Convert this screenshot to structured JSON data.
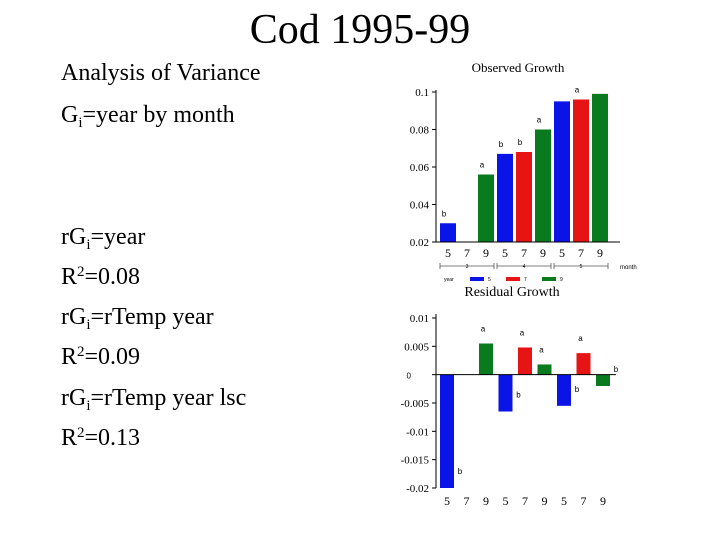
{
  "slide": {
    "title": "Cod 1995-99",
    "lines": {
      "anova": "Analysis of Variance",
      "g_pre": "G",
      "g_sub": "i",
      "g_post": "=year by month",
      "r1_pre": "rG",
      "r1_sub": "i",
      "r1_post": "=year",
      "r2_a": "R",
      "r2_sup": "2",
      "r2_b": "=0.08",
      "r3_pre": "rG",
      "r3_sub": "i",
      "r3_post": "=rTemp year",
      "r4_a": "R",
      "r4_sup": "2",
      "r4_b": "=0.09",
      "r5_pre": "rG",
      "r5_sub": "i",
      "r5_post": "=rTemp year lsc",
      "r6_a": "R",
      "r6_sup": "2",
      "r6_b": "=0.13"
    }
  },
  "chart_data": [
    {
      "type": "bar",
      "title": "Observed Growth",
      "categories": [
        "5",
        "7",
        "9",
        "5",
        "7",
        "9",
        "5",
        "7",
        "9"
      ],
      "values": [
        0.03,
        null,
        0.056,
        0.067,
        0.068,
        0.08,
        0.095,
        0.096,
        0.099
      ],
      "bar_colors": [
        "#0a14e6",
        "#e61414",
        "#0a7a1e",
        "#0a14e6",
        "#e61414",
        "#0a7a1e",
        "#0a14e6",
        "#e61414",
        "#0a7a1e"
      ],
      "bar_labels": [
        "b",
        "",
        "a",
        "b",
        "b",
        "a",
        "",
        "a",
        ""
      ],
      "ylim": [
        0.02,
        0.1
      ],
      "yticks": [
        "0.02",
        "0.04",
        "0.06",
        "0.08",
        "0.1"
      ],
      "group_labels": [
        "3",
        "4",
        "5"
      ],
      "xlabel": "month",
      "legend_title": "year",
      "legend": [
        {
          "name": "5",
          "color": "#0a14e6"
        },
        {
          "name": "7",
          "color": "#e61414"
        },
        {
          "name": "9",
          "color": "#0a7a1e"
        }
      ]
    },
    {
      "type": "bar",
      "title": "Residual Growth",
      "categories": [
        "5",
        "7",
        "9",
        "5",
        "7",
        "9",
        "5",
        "7",
        "9"
      ],
      "values": [
        -0.02,
        null,
        0.0055,
        -0.0065,
        0.0048,
        0.0018,
        -0.0055,
        0.0038,
        -0.002
      ],
      "bar_colors": [
        "#0a14e6",
        "#e61414",
        "#0a7a1e",
        "#0a14e6",
        "#e61414",
        "#0a7a1e",
        "#0a14e6",
        "#e61414",
        "#0a7a1e"
      ],
      "bar_labels": [
        "b",
        "",
        "a",
        "b",
        "a",
        "a",
        "b",
        "a",
        "b"
      ],
      "ylim": [
        -0.02,
        0.01
      ],
      "yticks": [
        "0.01",
        "0.005",
        "0",
        "-0.005",
        "-0.01",
        "-0.015",
        "-0.02"
      ]
    }
  ]
}
